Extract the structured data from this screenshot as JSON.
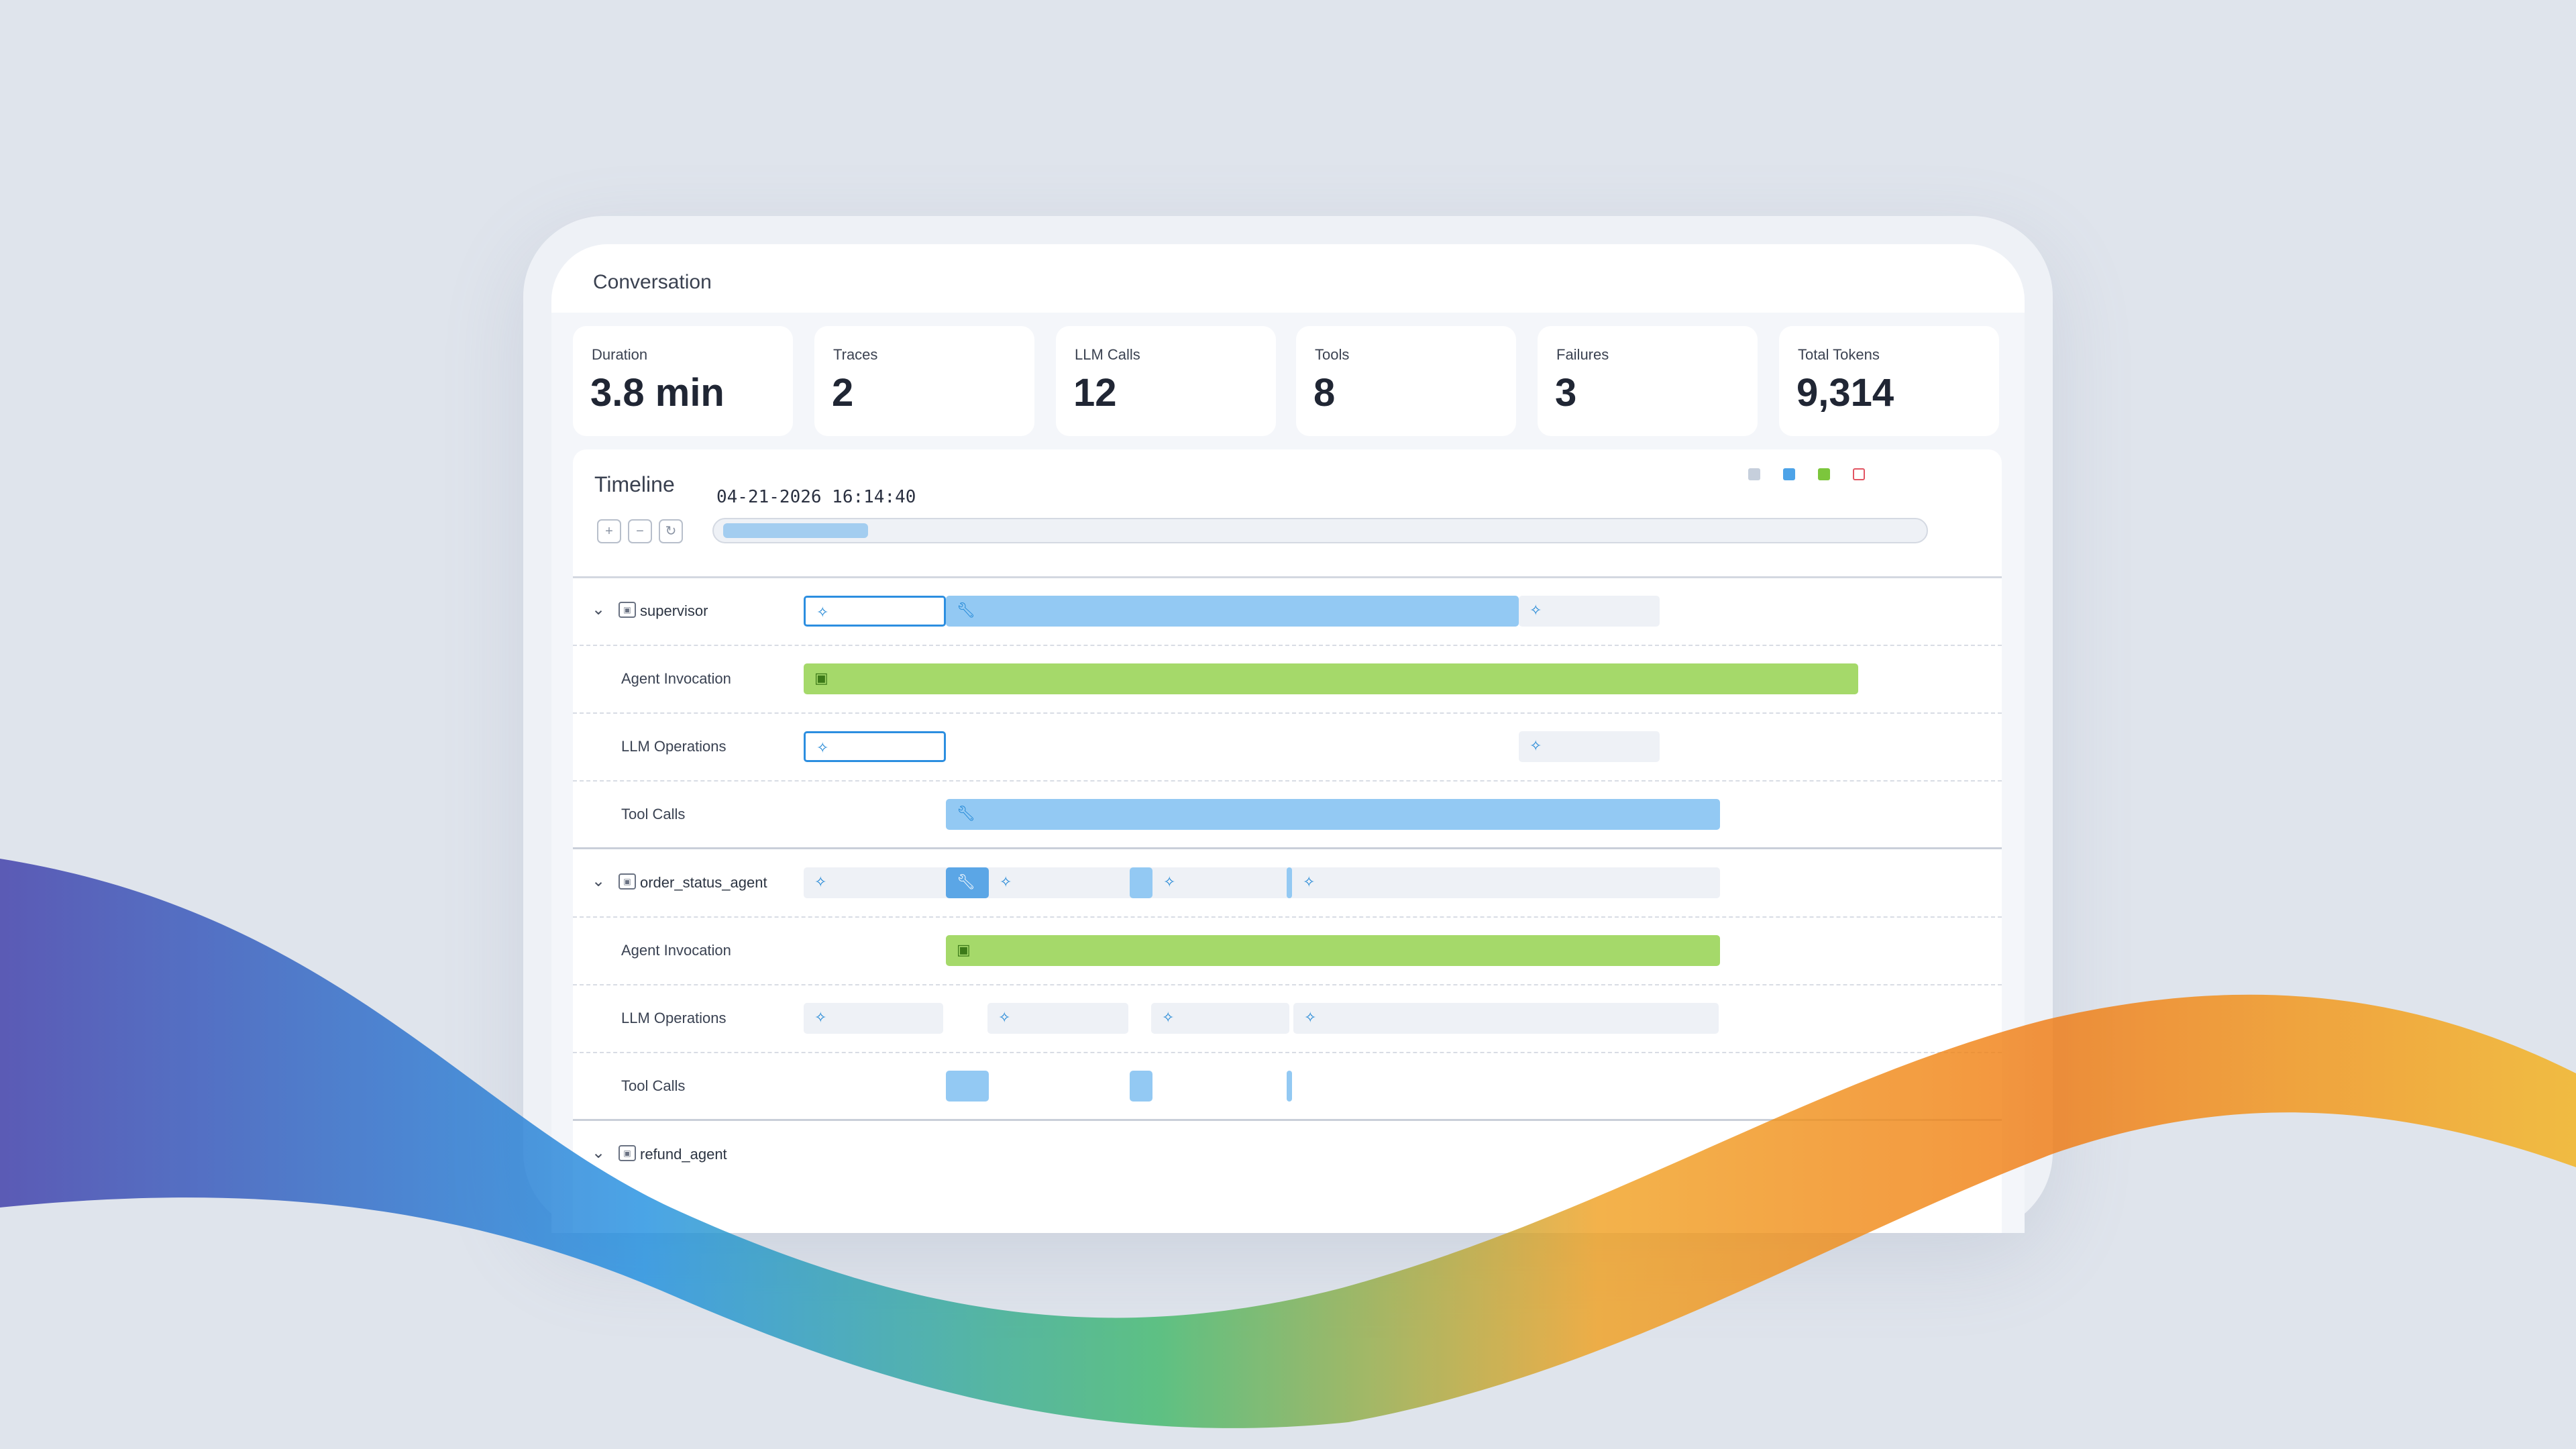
{
  "conversation": {
    "title": "Conversation"
  },
  "stats": [
    {
      "label": "Duration",
      "value": "3.8 min"
    },
    {
      "label": "Traces",
      "value": "2"
    },
    {
      "label": "LLM Calls",
      "value": "12"
    },
    {
      "label": "Tools",
      "value": "8"
    },
    {
      "label": "Failures",
      "value": "3"
    },
    {
      "label": "Total Tokens",
      "value": "9,314"
    }
  ],
  "timeline": {
    "title": "Timeline",
    "timestamp": "04-21-2026 16:14:40",
    "legend_colors": [
      "#c6cfdc",
      "#4da3e8",
      "#7cc63c",
      "#e25563"
    ],
    "zoom_in_icon": "zoom-in-icon",
    "zoom_out_icon": "zoom-out-icon",
    "reset_icon": "reset-icon"
  },
  "agents": [
    {
      "name": "supervisor",
      "rows": [
        "Agent Invocation",
        "LLM Operations",
        "Tool Calls"
      ]
    },
    {
      "name": "order_status_agent",
      "rows": [
        "Agent Invocation",
        "LLM Operations",
        "Tool Calls"
      ]
    },
    {
      "name": "refund_agent"
    }
  ],
  "icons": {
    "llm": "sparkle-icon",
    "tool": "wrench-icon",
    "agent": "agent-icon",
    "expand": "chevron-down-icon"
  },
  "colors": {
    "llm_border": "#2c8ee0",
    "tool_fill": "#93c9f3",
    "agent_fill": "#a5d96a",
    "background": "#dfe4ec"
  }
}
